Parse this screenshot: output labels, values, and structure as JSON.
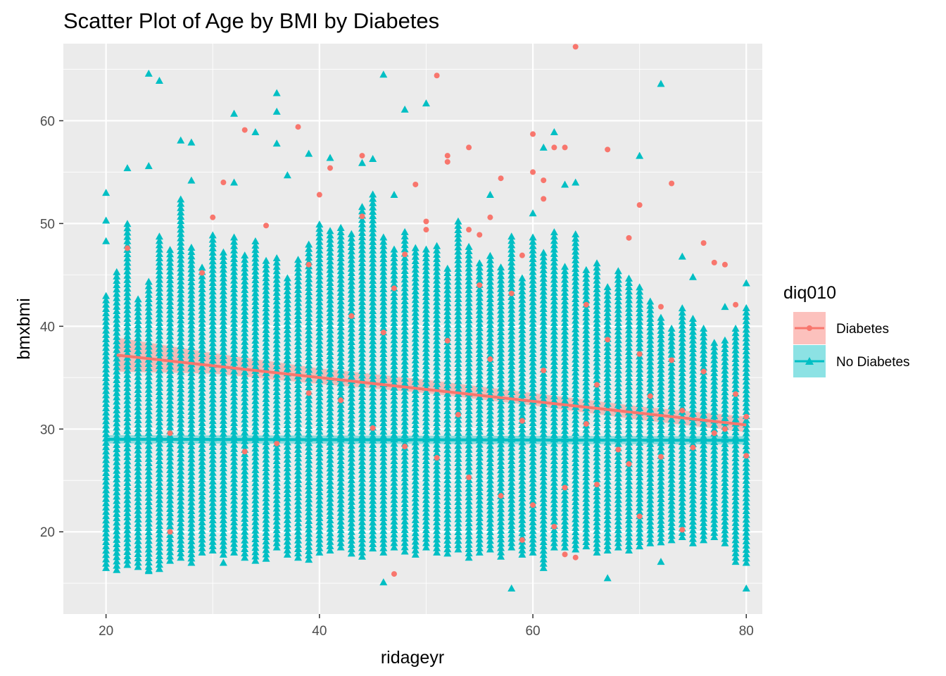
{
  "chart_data": {
    "type": "scatter",
    "title": "Scatter Plot of Age by BMI by Diabetes",
    "xlabel": "ridageyr",
    "ylabel": "bmxbmi",
    "xlim": [
      16,
      81.5
    ],
    "ylim": [
      12,
      67.5
    ],
    "x_ticks": [
      20,
      40,
      60,
      80
    ],
    "y_ticks": [
      20,
      30,
      40,
      50,
      60
    ],
    "grid": true,
    "legend": {
      "title": "diq010",
      "position": "right",
      "entries": [
        {
          "label": "Diabetes",
          "color": "#F8766D",
          "shape": "circle"
        },
        {
          "label": "No Diabetes",
          "color": "#00BFC4",
          "shape": "triangle"
        }
      ]
    },
    "series": [
      {
        "name": "Diabetes",
        "color": "#F8766D",
        "shape": "circle",
        "trend": {
          "x": [
            21,
            80
          ],
          "y": [
            37.2,
            30.4
          ]
        },
        "band": {
          "x": [
            21,
            30,
            40,
            50,
            60,
            70,
            80
          ],
          "lower": [
            35.6,
            35.4,
            34.4,
            33.5,
            32.3,
            30.9,
            29.7
          ],
          "upper": [
            38.9,
            37.4,
            35.9,
            34.8,
            33.5,
            32.2,
            31.2
          ]
        },
        "points": [
          [
            22,
            47.6
          ],
          [
            29,
            45.2
          ],
          [
            30,
            50.6
          ],
          [
            31,
            54.0
          ],
          [
            33,
            59.1
          ],
          [
            35,
            49.8
          ],
          [
            38,
            59.4
          ],
          [
            39,
            46.0
          ],
          [
            40,
            52.8
          ],
          [
            41,
            55.4
          ],
          [
            44,
            50.7
          ],
          [
            44,
            56.6
          ],
          [
            47,
            43.7
          ],
          [
            48,
            47.0
          ],
          [
            49,
            53.8
          ],
          [
            50,
            50.2
          ],
          [
            50,
            49.4
          ],
          [
            51,
            64.4
          ],
          [
            52,
            56.6
          ],
          [
            52,
            56.0
          ],
          [
            54,
            57.4
          ],
          [
            54,
            49.4
          ],
          [
            55,
            48.9
          ],
          [
            56,
            50.6
          ],
          [
            57,
            54.4
          ],
          [
            59,
            46.9
          ],
          [
            60,
            58.7
          ],
          [
            60,
            55.0
          ],
          [
            61,
            54.2
          ],
          [
            61,
            52.4
          ],
          [
            62,
            57.4
          ],
          [
            63,
            57.4
          ],
          [
            64,
            67.2
          ],
          [
            67,
            57.2
          ],
          [
            69,
            48.6
          ],
          [
            70,
            51.8
          ],
          [
            73,
            53.9
          ],
          [
            72,
            41.9
          ],
          [
            76,
            48.1
          ],
          [
            77,
            46.2
          ],
          [
            78,
            46.0
          ],
          [
            79,
            42.1
          ],
          [
            55,
            44.0
          ],
          [
            58,
            43.2
          ],
          [
            65,
            42.1
          ],
          [
            67,
            38.7
          ],
          [
            70,
            37.3
          ],
          [
            73,
            36.7
          ],
          [
            76,
            35.6
          ],
          [
            79,
            33.4
          ],
          [
            80,
            31.2
          ],
          [
            78,
            30.0
          ],
          [
            75,
            28.2
          ],
          [
            72,
            27.3
          ],
          [
            69,
            26.6
          ],
          [
            66,
            24.6
          ],
          [
            63,
            24.3
          ],
          [
            60,
            22.6
          ],
          [
            57,
            23.5
          ],
          [
            54,
            25.3
          ],
          [
            51,
            27.2
          ],
          [
            48,
            28.3
          ],
          [
            45,
            30.1
          ],
          [
            42,
            32.8
          ],
          [
            39,
            33.5
          ],
          [
            36,
            28.6
          ],
          [
            33,
            27.8
          ],
          [
            26,
            29.6
          ],
          [
            26,
            20.0
          ],
          [
            47,
            15.9
          ],
          [
            59,
            19.2
          ],
          [
            62,
            20.5
          ],
          [
            63,
            17.8
          ],
          [
            64,
            17.5
          ],
          [
            70,
            21.5
          ],
          [
            74,
            20.2
          ],
          [
            43,
            41.0
          ],
          [
            46,
            39.4
          ],
          [
            52,
            38.6
          ],
          [
            56,
            36.8
          ],
          [
            61,
            35.7
          ],
          [
            66,
            34.3
          ],
          [
            71,
            33.2
          ],
          [
            74,
            31.8
          ],
          [
            77,
            29.6
          ],
          [
            80,
            27.4
          ],
          [
            68,
            28.0
          ],
          [
            65,
            30.5
          ],
          [
            59,
            30.8
          ],
          [
            53,
            31.4
          ]
        ]
      },
      {
        "name": "No Diabetes",
        "color": "#00BFC4",
        "shape": "triangle",
        "trend": {
          "x": [
            20,
            80
          ],
          "y": [
            29.0,
            28.9
          ]
        },
        "band": {
          "x": [
            20,
            80
          ],
          "lower": [
            28.6,
            28.5
          ],
          "upper": [
            29.4,
            29.3
          ]
        },
        "points": [
          [
            20,
            53.0
          ],
          [
            20,
            50.3
          ],
          [
            20,
            48.3
          ],
          [
            22,
            55.4
          ],
          [
            24,
            64.6
          ],
          [
            24,
            55.6
          ],
          [
            25,
            63.9
          ],
          [
            27,
            58.1
          ],
          [
            28,
            57.9
          ],
          [
            28,
            54.2
          ],
          [
            32,
            60.7
          ],
          [
            32,
            54.0
          ],
          [
            34,
            58.9
          ],
          [
            36,
            62.7
          ],
          [
            36,
            60.9
          ],
          [
            36,
            57.8
          ],
          [
            37,
            54.7
          ],
          [
            39,
            56.8
          ],
          [
            41,
            56.4
          ],
          [
            44,
            55.9
          ],
          [
            45,
            56.3
          ],
          [
            46,
            64.5
          ],
          [
            47,
            52.8
          ],
          [
            48,
            61.1
          ],
          [
            50,
            61.7
          ],
          [
            56,
            52.8
          ],
          [
            60,
            51.0
          ],
          [
            61,
            57.4
          ],
          [
            62,
            58.9
          ],
          [
            63,
            53.8
          ],
          [
            64,
            54.0
          ],
          [
            70,
            56.6
          ],
          [
            72,
            63.6
          ],
          [
            74,
            46.8
          ],
          [
            75,
            44.8
          ],
          [
            78,
            41.9
          ],
          [
            80,
            44.2
          ],
          [
            46,
            15.1
          ],
          [
            58,
            14.5
          ],
          [
            67,
            15.5
          ],
          [
            80,
            14.5
          ],
          [
            72,
            17.1
          ],
          [
            31,
            17.0
          ],
          [
            24,
            16.3
          ]
        ],
        "columns": [
          [
            20,
            16.5,
            43.0
          ],
          [
            21,
            16.3,
            45.5
          ],
          [
            22,
            16.8,
            50.0
          ],
          [
            23,
            16.6,
            43.0
          ],
          [
            24,
            16.2,
            44.5
          ],
          [
            25,
            16.4,
            49.0
          ],
          [
            26,
            17.2,
            47.5
          ],
          [
            27,
            17.5,
            52.6
          ],
          [
            28,
            17.0,
            48.0
          ],
          [
            29,
            18.0,
            46.0
          ],
          [
            30,
            18.2,
            49.0
          ],
          [
            31,
            17.8,
            47.5
          ],
          [
            32,
            18.0,
            49.0
          ],
          [
            33,
            17.5,
            47.0
          ],
          [
            34,
            17.2,
            48.5
          ],
          [
            35,
            17.4,
            46.5
          ],
          [
            36,
            18.5,
            47.0
          ],
          [
            37,
            17.8,
            45.0
          ],
          [
            38,
            17.5,
            46.5
          ],
          [
            39,
            17.3,
            48.0
          ],
          [
            40,
            18.0,
            50.0
          ],
          [
            41,
            18.2,
            49.5
          ],
          [
            42,
            18.5,
            50.0
          ],
          [
            43,
            17.9,
            49.0
          ],
          [
            44,
            17.6,
            52.0
          ],
          [
            45,
            18.4,
            53.0
          ],
          [
            46,
            18.0,
            49.0
          ],
          [
            47,
            18.5,
            47.5
          ],
          [
            48,
            18.1,
            49.5
          ],
          [
            49,
            17.8,
            48.0
          ],
          [
            50,
            18.5,
            47.5
          ],
          [
            51,
            18.0,
            48.0
          ],
          [
            52,
            17.9,
            46.0
          ],
          [
            53,
            18.3,
            50.3
          ],
          [
            54,
            17.5,
            48.0
          ],
          [
            55,
            18.0,
            46.5
          ],
          [
            56,
            18.3,
            47.0
          ],
          [
            57,
            17.6,
            46.0
          ],
          [
            58,
            18.5,
            48.8
          ],
          [
            59,
            17.8,
            45.0
          ],
          [
            60,
            18.0,
            49.0
          ],
          [
            61,
            16.5,
            47.5
          ],
          [
            62,
            18.5,
            49.5
          ],
          [
            63,
            18.5,
            46.0
          ],
          [
            64,
            18.3,
            49.0
          ],
          [
            65,
            18.6,
            45.5
          ],
          [
            66,
            18.0,
            46.5
          ],
          [
            67,
            18.2,
            44.0
          ],
          [
            68,
            18.5,
            45.5
          ],
          [
            69,
            18.2,
            45.0
          ],
          [
            70,
            18.6,
            44.0
          ],
          [
            71,
            18.9,
            42.5
          ],
          [
            72,
            19.0,
            41.0
          ],
          [
            73,
            19.2,
            40.0
          ],
          [
            74,
            19.5,
            42.0
          ],
          [
            75,
            18.9,
            41.0
          ],
          [
            76,
            19.2,
            40.0
          ],
          [
            77,
            19.5,
            38.5
          ],
          [
            78,
            18.9,
            39.0
          ],
          [
            79,
            17.1,
            40.0
          ],
          [
            80,
            17.0,
            42.0
          ]
        ]
      }
    ]
  }
}
